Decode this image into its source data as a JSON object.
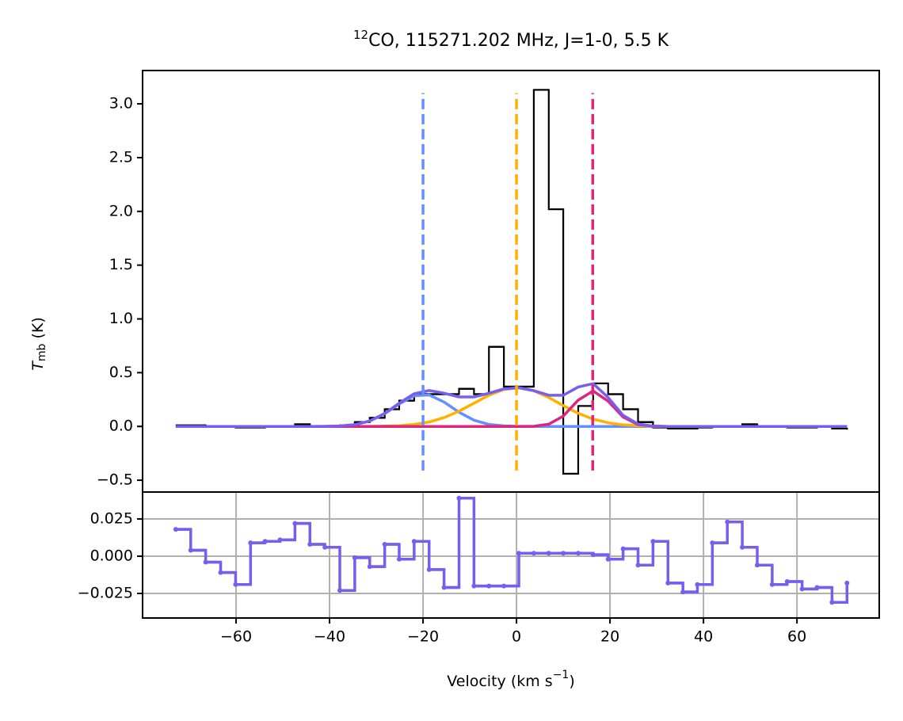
{
  "chart_data": [
    {
      "type": "step",
      "title_sup": "12",
      "title": "CO, 115271.202 MHz, J=1-0, 5.5 K",
      "ylabel_symbol": "T",
      "ylabel_sub": "mb",
      "ylabel_unit": " (K)",
      "xlim": [
        -80,
        77.6
      ],
      "ylim": [
        -0.61,
        3.31
      ],
      "yticks": [
        {
          "value": -0.5,
          "label": "−0.5"
        },
        {
          "value": 0,
          "label": "0.0"
        },
        {
          "value": 0.5,
          "label": "0.5"
        },
        {
          "value": 1,
          "label": "1.0"
        },
        {
          "value": 1.5,
          "label": "1.5"
        },
        {
          "value": 2,
          "label": "2.0"
        },
        {
          "value": 2.5,
          "label": "2.5"
        },
        {
          "value": 3,
          "label": "3.0"
        }
      ],
      "grid": false,
      "x": [
        -72.9,
        -69.7,
        -66.5,
        -63.3,
        -60.1,
        -56.9,
        -53.8,
        -50.6,
        -47.4,
        -44.2,
        -41.0,
        -37.8,
        -34.6,
        -31.4,
        -28.2,
        -25.1,
        -21.9,
        -18.7,
        -15.5,
        -12.3,
        -9.1,
        -5.9,
        -2.7,
        0.5,
        3.7,
        6.9,
        10.0,
        13.2,
        16.4,
        19.6,
        22.8,
        26.0,
        29.2,
        32.4,
        35.6,
        38.7,
        41.9,
        45.1,
        48.3,
        51.5,
        54.7,
        57.9,
        61.1,
        64.3,
        67.5,
        70.7
      ],
      "series": [
        {
          "color": "#000000",
          "drawstyle": "steps-post",
          "width": 2.2,
          "values": [
            0.01,
            0.01,
            0.0,
            0.0,
            -0.01,
            -0.01,
            0.0,
            0.0,
            0.02,
            0.0,
            0.0,
            0.01,
            0.04,
            0.08,
            0.16,
            0.24,
            0.3,
            0.3,
            0.3,
            0.35,
            0.3,
            0.74,
            0.37,
            0.37,
            3.13,
            2.02,
            -0.44,
            0.19,
            0.4,
            0.3,
            0.16,
            0.04,
            -0.01,
            -0.02,
            -0.02,
            -0.01,
            0.0,
            0.0,
            0.02,
            0.0,
            0.0,
            -0.01,
            -0.01,
            0.0,
            -0.02,
            -0.03
          ]
        },
        {
          "color": "#648FFF",
          "drawstyle": "line",
          "width": 3.5,
          "values": [
            0,
            0,
            0,
            0,
            0,
            0,
            0,
            0,
            0,
            0,
            0.001,
            0.004,
            0.016,
            0.05,
            0.118,
            0.209,
            0.285,
            0.293,
            0.227,
            0.132,
            0.058,
            0.019,
            0.005,
            0.001,
            0,
            0,
            0,
            0,
            0,
            0,
            0,
            0,
            0,
            0,
            0,
            0,
            0,
            0,
            0,
            0,
            0,
            0,
            0,
            0,
            0,
            0
          ]
        },
        {
          "color": "#FFB000",
          "drawstyle": "line",
          "width": 3.5,
          "values": [
            0,
            0,
            0,
            0,
            0,
            0,
            0,
            0,
            0,
            0,
            0,
            0,
            0,
            0.001,
            0.003,
            0.007,
            0.019,
            0.041,
            0.082,
            0.142,
            0.216,
            0.29,
            0.344,
            0.359,
            0.331,
            0.269,
            0.194,
            0.122,
            0.068,
            0.034,
            0.015,
            0.006,
            0.002,
            0,
            0,
            0,
            0,
            0,
            0,
            0,
            0,
            0,
            0,
            0,
            0,
            0
          ]
        },
        {
          "color": "#DC267F",
          "drawstyle": "line",
          "width": 3.5,
          "values": [
            0,
            0,
            0,
            0,
            0,
            0,
            0,
            0,
            0,
            0,
            0,
            0,
            0,
            0,
            0,
            0,
            0,
            0,
            0,
            0,
            0,
            0,
            0,
            0,
            0.002,
            0.021,
            0.096,
            0.245,
            0.33,
            0.235,
            0.088,
            0.017,
            0.002,
            0,
            0,
            0,
            0,
            0,
            0,
            0,
            0,
            0,
            0,
            0,
            0,
            0
          ]
        },
        {
          "color": "#785EF0",
          "drawstyle": "line",
          "width": 3.5,
          "values": [
            0,
            0,
            0,
            0,
            0,
            0,
            0,
            0,
            0,
            0,
            0.001,
            0.004,
            0.016,
            0.051,
            0.121,
            0.216,
            0.304,
            0.334,
            0.309,
            0.274,
            0.274,
            0.309,
            0.349,
            0.36,
            0.333,
            0.29,
            0.29,
            0.367,
            0.398,
            0.269,
            0.103,
            0.023,
            0.004,
            0,
            0,
            0,
            0,
            0,
            0,
            0,
            0,
            0,
            0,
            0,
            0,
            0
          ]
        }
      ],
      "vline_range": [
        -0.41,
        3.1
      ],
      "vlines": [
        {
          "x": -20,
          "color": "#648FFF"
        },
        {
          "x": 0,
          "color": "#FFB000"
        },
        {
          "x": 16.3,
          "color": "#DC267F"
        }
      ]
    },
    {
      "type": "step",
      "xlabel": "Velocity (km s",
      "xlabel_sup": "−1",
      "xlabel_end": ")",
      "xlim": [
        -80,
        77.6
      ],
      "ylim": [
        -0.0415,
        0.0431
      ],
      "xticks": [
        {
          "value": -60,
          "label": "−60"
        },
        {
          "value": -40,
          "label": "−40"
        },
        {
          "value": -20,
          "label": "−20"
        },
        0,
        20,
        40,
        60
      ],
      "yticks": [
        {
          "value": -0.025,
          "label": "−0.025"
        },
        {
          "value": 0,
          "label": "0.000"
        },
        {
          "value": 0.025,
          "label": "0.025"
        }
      ],
      "grid": true,
      "x": [
        -72.9,
        -69.7,
        -66.5,
        -63.3,
        -60.1,
        -56.9,
        -53.8,
        -50.6,
        -47.4,
        -44.2,
        -41.0,
        -37.8,
        -34.6,
        -31.4,
        -28.2,
        -25.1,
        -21.9,
        -18.7,
        -15.5,
        -12.3,
        -9.1,
        -5.9,
        -2.7,
        0.5,
        3.7,
        6.9,
        10.0,
        13.2,
        16.4,
        19.6,
        22.8,
        26.0,
        29.2,
        32.4,
        35.6,
        38.7,
        41.9,
        45.1,
        48.3,
        51.5,
        54.7,
        57.9,
        61.1,
        64.3,
        67.5,
        70.7
      ],
      "series": [
        {
          "color": "#785EF0",
          "drawstyle": "steps-post",
          "width": 3.5,
          "marker": true,
          "values": [
            0.018,
            0.004,
            -0.004,
            -0.011,
            -0.019,
            0.009,
            0.01,
            0.011,
            0.022,
            0.008,
            0.006,
            -0.023,
            -0.001,
            -0.007,
            0.008,
            -0.002,
            0.01,
            -0.009,
            -0.021,
            0.039,
            -0.02,
            -0.02,
            -0.02,
            0.002,
            0.002,
            0.002,
            0.002,
            0.002,
            0.001,
            -0.002,
            0.005,
            -0.006,
            0.01,
            -0.018,
            -0.024,
            -0.019,
            0.009,
            0.023,
            0.006,
            -0.006,
            -0.019,
            -0.017,
            -0.022,
            -0.021,
            -0.031,
            -0.018
          ]
        }
      ]
    }
  ]
}
